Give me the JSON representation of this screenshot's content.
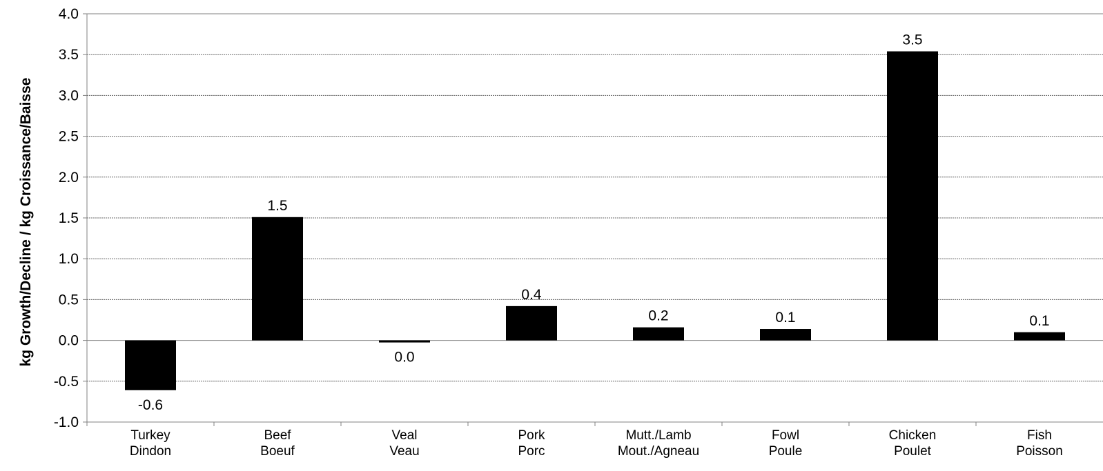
{
  "chart_data": {
    "type": "bar",
    "categories": [
      [
        "Turkey",
        "Dindon"
      ],
      [
        "Beef",
        "Boeuf"
      ],
      [
        "Veal",
        "Veau"
      ],
      [
        "Pork",
        "Porc"
      ],
      [
        "Mutt./Lamb",
        "Mout./Agneau"
      ],
      [
        "Fowl",
        "Poule"
      ],
      [
        "Chicken",
        "Poulet"
      ],
      [
        "Fish",
        "Poisson"
      ]
    ],
    "values": [
      -0.61,
      1.51,
      -0.02,
      0.42,
      0.16,
      0.14,
      3.54,
      0.1
    ],
    "data_labels": [
      "-0.6",
      "1.5",
      "0.0",
      "0.4",
      "0.2",
      "0.1",
      "3.5",
      "0.1"
    ],
    "title": "",
    "xlabel": "",
    "ylabel": "kg Growth/Decline / kg Croissance/Baisse",
    "ylim": [
      -1.0,
      4.0
    ],
    "yticks": [
      "-1.0",
      "-0.5",
      "0.0",
      "0.5",
      "1.0",
      "1.5",
      "2.0",
      "2.5",
      "3.0",
      "3.5",
      "4.0"
    ],
    "grid": "horizontal dotted",
    "legend": "none",
    "bar_color": "#000000",
    "grid_color": "#666666",
    "axis_color": "#808080"
  }
}
